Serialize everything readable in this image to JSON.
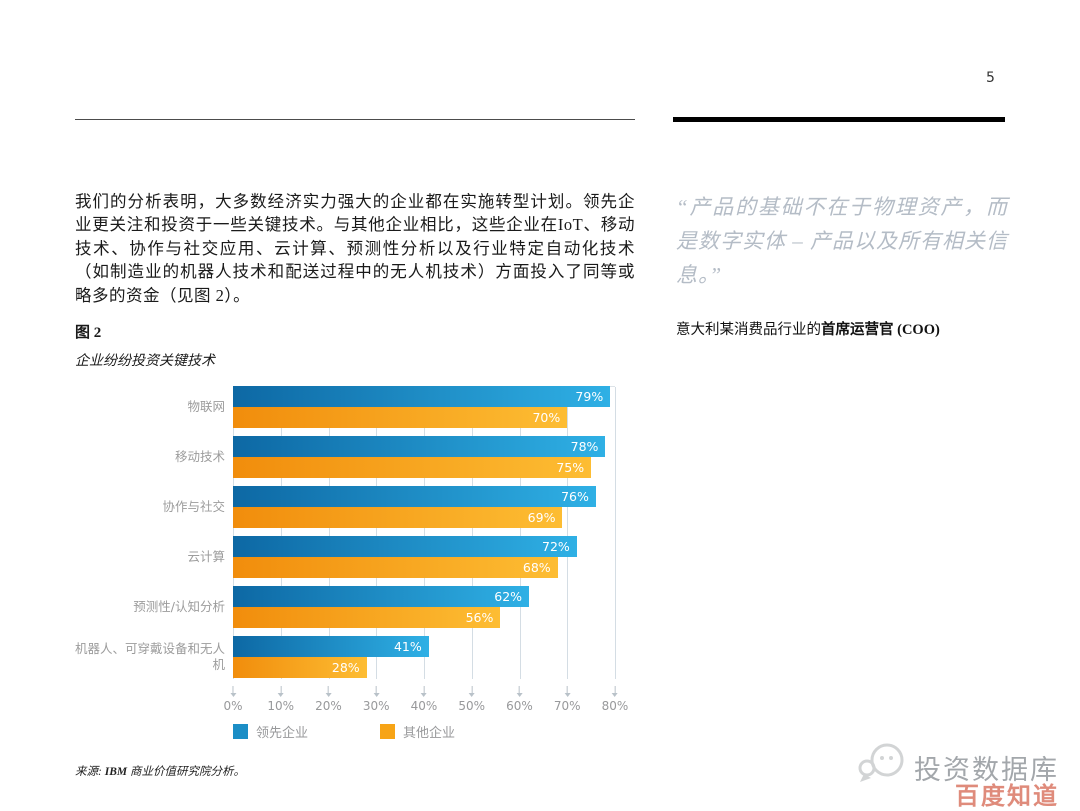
{
  "page": {
    "number": "5"
  },
  "article": {
    "paragraph": "我们的分析表明，大多数经济实力强大的企业都在实施转型计划。领先企业更关注和投资于一些关键技术。与其他企业相比，这些企业在IoT、移动技术、协作与社交应用、云计算、预测性分析以及行业特定自动化技术（如制造业的机器人技术和配送过程中的无人机技术）方面投入了同等或略多的资金（见图 2）。",
    "figure_label": "图 2",
    "figure_subtitle": "企业纷纷投资关键技术",
    "source_prefix": "来源: ",
    "source_bold": "IBM",
    "source_rest": " 商业价值研究院分析。"
  },
  "quote": {
    "text": "“产品的基础不在于物理资产，而是数字实体 – 产品以及所有相关信息。”",
    "attribution_normal": "意大利某消费品行业的",
    "attribution_bold": "首席运营官 (COO)"
  },
  "watermark": {
    "icon": "chat-bubbles-icon",
    "brand": "投资数据库",
    "badge": "百度知道"
  },
  "chart_data": {
    "type": "bar",
    "orientation": "horizontal",
    "title": "企业纷纷投资关键技术",
    "categories": [
      "物联网",
      "移动技术",
      "协作与社交",
      "云计算",
      "预测性/认知分析",
      "机器人、可穿戴设备和无人机"
    ],
    "series": [
      {
        "name": "领先企业",
        "color": "#1b8ec6",
        "gradient": [
          "#0d68a4",
          "#2fb0e5"
        ],
        "values": [
          79,
          78,
          76,
          72,
          62,
          41
        ]
      },
      {
        "name": "其他企业",
        "color": "#f7a416",
        "gradient": [
          "#f18d0c",
          "#fdbd33"
        ],
        "values": [
          70,
          75,
          69,
          68,
          56,
          28
        ]
      }
    ],
    "value_suffix": "%",
    "xlim": [
      0,
      80
    ],
    "x_ticks": [
      "0%",
      "10%",
      "20%",
      "30%",
      "40%",
      "50%",
      "60%",
      "70%",
      "80%"
    ],
    "grid": true,
    "legend_position": "bottom"
  }
}
